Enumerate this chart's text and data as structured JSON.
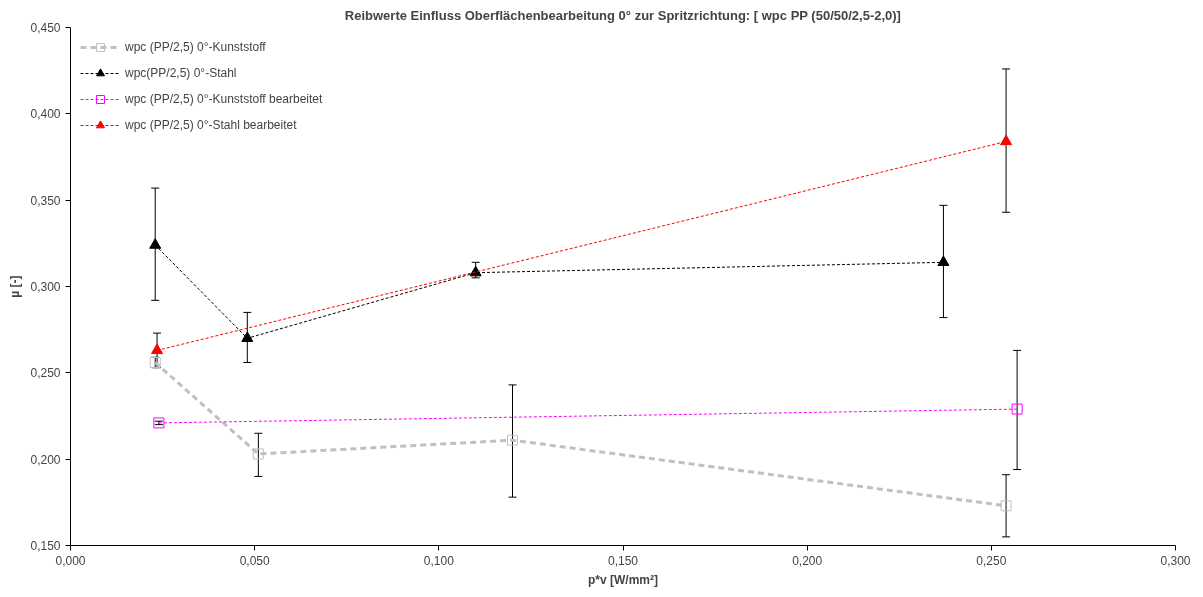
{
  "chart_data": {
    "type": "line",
    "title": "Reibwerte Einfluss Oberflächenbearbeitung 0° zur Spritzrichtung: [ wpc PP (50/50/2,5-2,0)]",
    "xlabel": "p*v [W/mm²]",
    "ylabel": "µ [-]",
    "xlim": [
      0,
      0.3
    ],
    "ylim": [
      0.15,
      0.45
    ],
    "xticks": [
      {
        "value": 0,
        "label": "0,000"
      },
      {
        "value": 0.05,
        "label": "0,050"
      },
      {
        "value": 0.1,
        "label": "0,100"
      },
      {
        "value": 0.15,
        "label": "0,150"
      },
      {
        "value": 0.2,
        "label": "0,200"
      },
      {
        "value": 0.25,
        "label": "0,250"
      },
      {
        "value": 0.3,
        "label": "0,300"
      }
    ],
    "yticks": [
      {
        "value": 0.15,
        "label": "0,150"
      },
      {
        "value": 0.2,
        "label": "0,200"
      },
      {
        "value": 0.25,
        "label": "0,250"
      },
      {
        "value": 0.3,
        "label": "0,300"
      },
      {
        "value": 0.35,
        "label": "0,350"
      },
      {
        "value": 0.4,
        "label": "0,400"
      },
      {
        "value": 0.45,
        "label": "0,450"
      }
    ],
    "grid": false,
    "legend": "top left",
    "series": [
      {
        "name": "wpc (PP/2,5) 0°-Kunststoff",
        "color": "#c0c0c0",
        "marker": "square",
        "line_style": "dashed",
        "x": [
          0.023,
          0.051,
          0.12,
          0.254
        ],
        "values": [
          0.256,
          0.203,
          0.211,
          0.173
        ],
        "errors": [
          [
            0.253,
            0.259
          ],
          [
            0.19,
            0.215
          ],
          [
            0.178,
            0.243
          ],
          [
            0.155,
            0.191
          ]
        ]
      },
      {
        "name": "wpc(PP/2,5) 0°-Stahl",
        "color": "#000000",
        "marker": "triangle",
        "line_style": "dotted",
        "x": [
          0.023,
          0.048,
          0.11,
          0.237
        ],
        "values": [
          0.324,
          0.27,
          0.308,
          0.314
        ],
        "errors": [
          [
            0.292,
            0.357
          ],
          [
            0.256,
            0.285
          ],
          [
            0.305,
            0.314
          ],
          [
            0.282,
            0.347
          ]
        ]
      },
      {
        "name": "wpc (PP/2,5) 0°-Kunststoff bearbeitet",
        "color": "#ff00ff",
        "marker": "square",
        "line_style": "dotted",
        "x": [
          0.024,
          0.257
        ],
        "values": [
          0.221,
          0.229
        ],
        "errors": [
          [
            0.22,
            0.222
          ],
          [
            0.194,
            0.263
          ]
        ]
      },
      {
        "name": "wpc (PP/2,5) 0°-Stahl bearbeitet",
        "color": "#ff0000",
        "marker": "triangle",
        "line_style": "dotted",
        "x": [
          0.0235,
          0.254
        ],
        "values": [
          0.263,
          0.384
        ],
        "errors": [
          [
            0.253,
            0.273
          ],
          [
            0.343,
            0.426
          ]
        ]
      }
    ]
  }
}
